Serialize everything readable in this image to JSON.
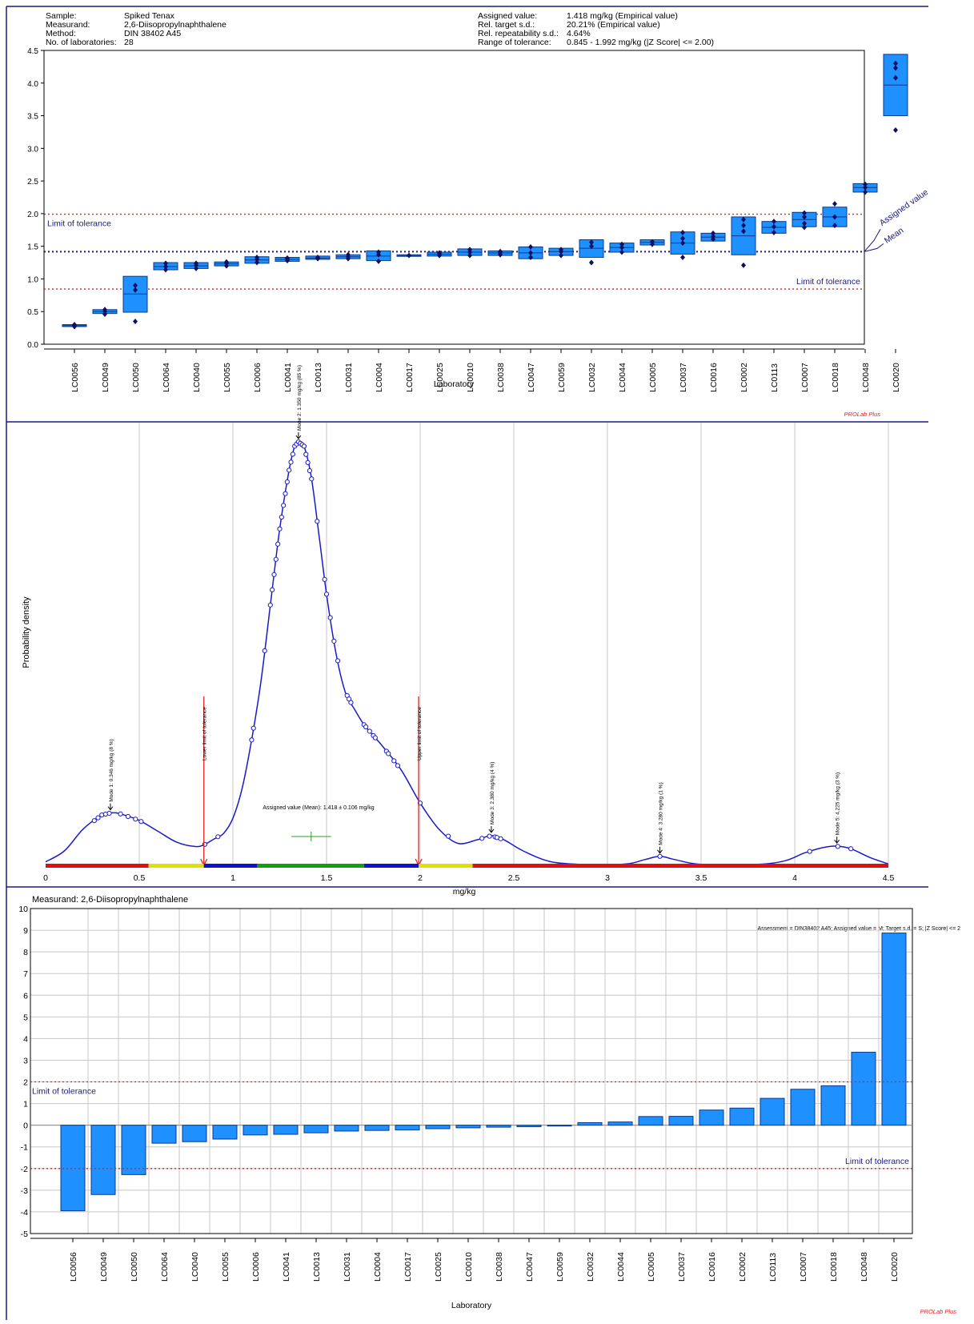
{
  "header": {
    "left": [
      {
        "label": "Sample:",
        "value": "Spiked Tenax"
      },
      {
        "label": "Measurand:",
        "value": "2,6-Diisopropylnaphthalene"
      },
      {
        "label": "Method:",
        "value": "DIN 38402 A45"
      },
      {
        "label": "No. of laboratories:",
        "value": "28"
      }
    ],
    "right": [
      {
        "label": "Assigned value:",
        "value": "1.418 mg/kg (Empirical value)"
      },
      {
        "label": "Rel. target s.d.:",
        "value": "20.21% (Empirical value)"
      },
      {
        "label": "Rel. repeatability s.d.:",
        "value": "4.64%"
      },
      {
        "label": "Range of tolerance:",
        "value": "0.845 - 1.992 mg/kg (|Z Score| <= 2.00)"
      }
    ]
  },
  "software_label": "PROLab Plus",
  "colors": {
    "box_fill": "#1e90ff",
    "box_stroke": "#0a3a8c",
    "point": "#101060",
    "tolerance_line": "#e02020",
    "mean_line": "#1a1a80",
    "curve": "#1a1acc",
    "text_navy": "#1a1a80",
    "grid": "#c8c8c8",
    "software": "#e02020"
  },
  "chart_data": [
    {
      "type": "box",
      "xlabel": "Laboratory",
      "ylabel": "",
      "ylim": [
        0,
        4.5
      ],
      "yticks": [
        "0.0",
        "0.5",
        "1.0",
        "1.5",
        "2.0",
        "2.5",
        "3.0",
        "3.5",
        "4.0",
        "4.5"
      ],
      "assigned_value": 1.418,
      "tolerance_lower": 0.845,
      "tolerance_upper": 1.992,
      "limit_label": "Limit of tolerance",
      "assigned_label": "Assigned value",
      "mean_label": "Mean",
      "grid": false,
      "labs": [
        {
          "name": "LC0056",
          "low": 0.27,
          "high": 0.3,
          "median": 0.285,
          "points": [
            0.27,
            0.29,
            0.3
          ]
        },
        {
          "name": "LC0049",
          "low": 0.47,
          "high": 0.53,
          "median": 0.5,
          "points": [
            0.46,
            0.5,
            0.53
          ]
        },
        {
          "name": "LC0050",
          "low": 0.49,
          "high": 1.04,
          "median": 0.77,
          "points": [
            0.35,
            0.83,
            0.9
          ]
        },
        {
          "name": "LC0064",
          "low": 1.14,
          "high": 1.25,
          "median": 1.19,
          "points": [
            1.14,
            1.19,
            1.24
          ]
        },
        {
          "name": "LC0040",
          "low": 1.16,
          "high": 1.25,
          "median": 1.2,
          "points": [
            1.16,
            1.21,
            1.24
          ]
        },
        {
          "name": "LC0055",
          "low": 1.2,
          "high": 1.26,
          "median": 1.23,
          "points": [
            1.2,
            1.24,
            1.26
          ]
        },
        {
          "name": "LC0006",
          "low": 1.24,
          "high": 1.34,
          "median": 1.29,
          "points": [
            1.25,
            1.3,
            1.33
          ]
        },
        {
          "name": "LC0041",
          "low": 1.27,
          "high": 1.33,
          "median": 1.3,
          "points": [
            1.28,
            1.31,
            1.32
          ]
        },
        {
          "name": "LC0013",
          "low": 1.3,
          "high": 1.35,
          "median": 1.32,
          "points": [
            1.31,
            1.33
          ]
        },
        {
          "name": "LC0031",
          "low": 1.31,
          "high": 1.37,
          "median": 1.34,
          "points": [
            1.31,
            1.34,
            1.37
          ]
        },
        {
          "name": "LC0004",
          "low": 1.28,
          "high": 1.43,
          "median": 1.35,
          "points": [
            1.27,
            1.37,
            1.41
          ]
        },
        {
          "name": "LC0017",
          "low": 1.35,
          "high": 1.37,
          "median": 1.36,
          "points": [
            1.36
          ]
        },
        {
          "name": "LC0025",
          "low": 1.35,
          "high": 1.41,
          "median": 1.38,
          "points": [
            1.36,
            1.38,
            1.4
          ]
        },
        {
          "name": "LC0010",
          "low": 1.36,
          "high": 1.46,
          "median": 1.41,
          "points": [
            1.36,
            1.41,
            1.45
          ]
        },
        {
          "name": "LC0038",
          "low": 1.36,
          "high": 1.43,
          "median": 1.4,
          "points": [
            1.37,
            1.4,
            1.42
          ]
        },
        {
          "name": "LC0047",
          "low": 1.31,
          "high": 1.49,
          "median": 1.4,
          "points": [
            1.33,
            1.4,
            1.49
          ]
        },
        {
          "name": "LC0059",
          "low": 1.36,
          "high": 1.47,
          "median": 1.42,
          "points": [
            1.36,
            1.42,
            1.45
          ]
        },
        {
          "name": "LC0032",
          "low": 1.33,
          "high": 1.6,
          "median": 1.47,
          "points": [
            1.25,
            1.5,
            1.56
          ]
        },
        {
          "name": "LC0044",
          "low": 1.41,
          "high": 1.55,
          "median": 1.48,
          "points": [
            1.41,
            1.48,
            1.53
          ]
        },
        {
          "name": "LC0005",
          "low": 1.52,
          "high": 1.6,
          "median": 1.56,
          "points": [
            1.53,
            1.57
          ]
        },
        {
          "name": "LC0037",
          "low": 1.38,
          "high": 1.72,
          "median": 1.55,
          "points": [
            1.33,
            1.55,
            1.62,
            1.71
          ]
        },
        {
          "name": "LC0016",
          "low": 1.58,
          "high": 1.7,
          "median": 1.64,
          "points": [
            1.61,
            1.65,
            1.7
          ]
        },
        {
          "name": "LC0002",
          "low": 1.37,
          "high": 1.95,
          "median": 1.66,
          "points": [
            1.21,
            1.73,
            1.82,
            1.91
          ]
        },
        {
          "name": "LC0113",
          "low": 1.7,
          "high": 1.88,
          "median": 1.79,
          "points": [
            1.71,
            1.8,
            1.88
          ]
        },
        {
          "name": "LC0007",
          "low": 1.8,
          "high": 2.02,
          "median": 1.91,
          "points": [
            1.79,
            1.85,
            1.95,
            2.01
          ]
        },
        {
          "name": "LC0018",
          "low": 1.8,
          "high": 2.1,
          "median": 1.95,
          "points": [
            1.82,
            1.95,
            2.15
          ]
        },
        {
          "name": "LC0048",
          "low": 2.33,
          "high": 2.46,
          "median": 2.4,
          "points": [
            2.33,
            2.4,
            2.45
          ]
        },
        {
          "name": "LC0020",
          "low": 3.5,
          "high": 4.44,
          "median": 3.97,
          "points": [
            3.28,
            4.08,
            4.23,
            4.3
          ]
        }
      ]
    },
    {
      "type": "line",
      "xlabel": "mg/kg",
      "ylabel": "Probability density",
      "xlim": [
        0,
        4.5
      ],
      "xticks": [
        "0",
        "0.5",
        "1",
        "1.5",
        "2",
        "2.5",
        "3",
        "3.5",
        "4",
        "4.5"
      ],
      "grid": true,
      "curve": [
        [
          0,
          0.02
        ],
        [
          0.1,
          0.07
        ],
        [
          0.2,
          0.17
        ],
        [
          0.3,
          0.235
        ],
        [
          0.35,
          0.245
        ],
        [
          0.4,
          0.24
        ],
        [
          0.5,
          0.21
        ],
        [
          0.6,
          0.16
        ],
        [
          0.7,
          0.11
        ],
        [
          0.8,
          0.09
        ],
        [
          0.85,
          0.1
        ],
        [
          0.9,
          0.125
        ],
        [
          0.95,
          0.15
        ],
        [
          1.0,
          0.22
        ],
        [
          1.05,
          0.36
        ],
        [
          1.1,
          0.58
        ],
        [
          1.15,
          0.85
        ],
        [
          1.2,
          1.2
        ],
        [
          1.25,
          1.55
        ],
        [
          1.3,
          1.82
        ],
        [
          1.33,
          1.93
        ],
        [
          1.35,
          1.95
        ],
        [
          1.38,
          1.93
        ],
        [
          1.42,
          1.78
        ],
        [
          1.46,
          1.52
        ],
        [
          1.5,
          1.25
        ],
        [
          1.55,
          0.98
        ],
        [
          1.6,
          0.8
        ],
        [
          1.65,
          0.72
        ],
        [
          1.7,
          0.65
        ],
        [
          1.75,
          0.6
        ],
        [
          1.8,
          0.55
        ],
        [
          1.9,
          0.44
        ],
        [
          2.0,
          0.29
        ],
        [
          2.1,
          0.17
        ],
        [
          2.2,
          0.105
        ],
        [
          2.3,
          0.12
        ],
        [
          2.38,
          0.14
        ],
        [
          2.45,
          0.12
        ],
        [
          2.55,
          0.07
        ],
        [
          2.7,
          0.02
        ],
        [
          2.9,
          0.007
        ],
        [
          3.1,
          0.01
        ],
        [
          3.2,
          0.03
        ],
        [
          3.28,
          0.045
        ],
        [
          3.36,
          0.03
        ],
        [
          3.5,
          0.008
        ],
        [
          3.8,
          0.008
        ],
        [
          3.95,
          0.025
        ],
        [
          4.05,
          0.06
        ],
        [
          4.15,
          0.085
        ],
        [
          4.22,
          0.092
        ],
        [
          4.3,
          0.08
        ],
        [
          4.4,
          0.04
        ],
        [
          4.5,
          0.01
        ]
      ],
      "markers": [
        0.26,
        0.28,
        0.3,
        0.32,
        0.34,
        0.4,
        0.44,
        0.48,
        0.51,
        0.85,
        0.92,
        1.1,
        1.11,
        1.17,
        1.2,
        1.21,
        1.22,
        1.23,
        1.24,
        1.25,
        1.26,
        1.27,
        1.28,
        1.29,
        1.3,
        1.31,
        1.32,
        1.33,
        1.34,
        1.35,
        1.36,
        1.37,
        1.38,
        1.39,
        1.4,
        1.41,
        1.42,
        1.45,
        1.49,
        1.5,
        1.52,
        1.54,
        1.56,
        1.61,
        1.62,
        1.63,
        1.7,
        1.71,
        1.73,
        1.75,
        1.76,
        1.82,
        1.83,
        1.86,
        1.88,
        2.0,
        2.15,
        2.33,
        2.37,
        2.4,
        2.41,
        2.43,
        3.28,
        4.08,
        4.23,
        4.3
      ],
      "modes": [
        {
          "x": 0.346,
          "label": "Mode 1: 0.346 mg/kg (8 %)"
        },
        {
          "x": 1.35,
          "label": "Mode 2: 1.350 mg/kg (85 %)"
        },
        {
          "x": 2.38,
          "label": "Mode 3: 2.380 mg/kg (4 %)"
        },
        {
          "x": 3.28,
          "label": "Mode 4: 3.280 mg/kg (1 %)"
        },
        {
          "x": 4.225,
          "label": "Mode 5: 4.225 mg/kg (3 %)"
        }
      ],
      "lower_limit": {
        "x": 0.845,
        "label": "Lower limit of tolerance"
      },
      "upper_limit": {
        "x": 1.992,
        "label": "Upper limit of tolerance"
      },
      "assigned": {
        "value": 1.418,
        "uncertainty": 0.106,
        "label": "Assigned value (Mean): 1.418 ± 0.106 mg/kg"
      },
      "bands": [
        {
          "from": 0,
          "to": 0.55,
          "color": "#e01010"
        },
        {
          "from": 0.55,
          "to": 0.845,
          "color": "#e0e000"
        },
        {
          "from": 0.845,
          "to": 1.13,
          "color": "#1010d0"
        },
        {
          "from": 1.13,
          "to": 1.7,
          "color": "#10a010"
        },
        {
          "from": 1.7,
          "to": 1.992,
          "color": "#1010d0"
        },
        {
          "from": 1.992,
          "to": 2.28,
          "color": "#e0e000"
        },
        {
          "from": 2.28,
          "to": 4.5,
          "color": "#e01010"
        }
      ]
    },
    {
      "type": "bar",
      "title": "Measurand: 2,6-Diisopropylnaphthalene",
      "note": "Assessment = DIN38402 A45; Assigned value = M; Target s.d. = S; |Z Score| <= 2",
      "xlabel": "Laboratory",
      "ylabel": "",
      "ylim": [
        -5,
        10
      ],
      "yticks": [
        "-5",
        "-4",
        "-3",
        "-2",
        "-1",
        "0",
        "1",
        "2",
        "3",
        "4",
        "5",
        "6",
        "7",
        "8",
        "9",
        "10"
      ],
      "tolerance": [
        -2,
        2
      ],
      "limit_label": "Limit of tolerance",
      "grid": true,
      "categories": [
        "LC0056",
        "LC0049",
        "LC0050",
        "LC0064",
        "LC0040",
        "LC0055",
        "LC0006",
        "LC0041",
        "LC0013",
        "LC0031",
        "LC0004",
        "LC0017",
        "LC0025",
        "LC0010",
        "LC0038",
        "LC0047",
        "LC0059",
        "LC0032",
        "LC0044",
        "LC0005",
        "LC0037",
        "LC0016",
        "LC0002",
        "LC0113",
        "LC0007",
        "LC0018",
        "LC0048",
        "LC0020"
      ],
      "values": [
        -3.95,
        -3.2,
        -2.28,
        -0.83,
        -0.76,
        -0.64,
        -0.45,
        -0.42,
        -0.35,
        -0.27,
        -0.24,
        -0.22,
        -0.16,
        -0.12,
        -0.09,
        -0.07,
        -0.02,
        0.12,
        0.15,
        0.4,
        0.41,
        0.7,
        0.79,
        1.24,
        1.66,
        1.82,
        3.37,
        8.87
      ]
    }
  ]
}
